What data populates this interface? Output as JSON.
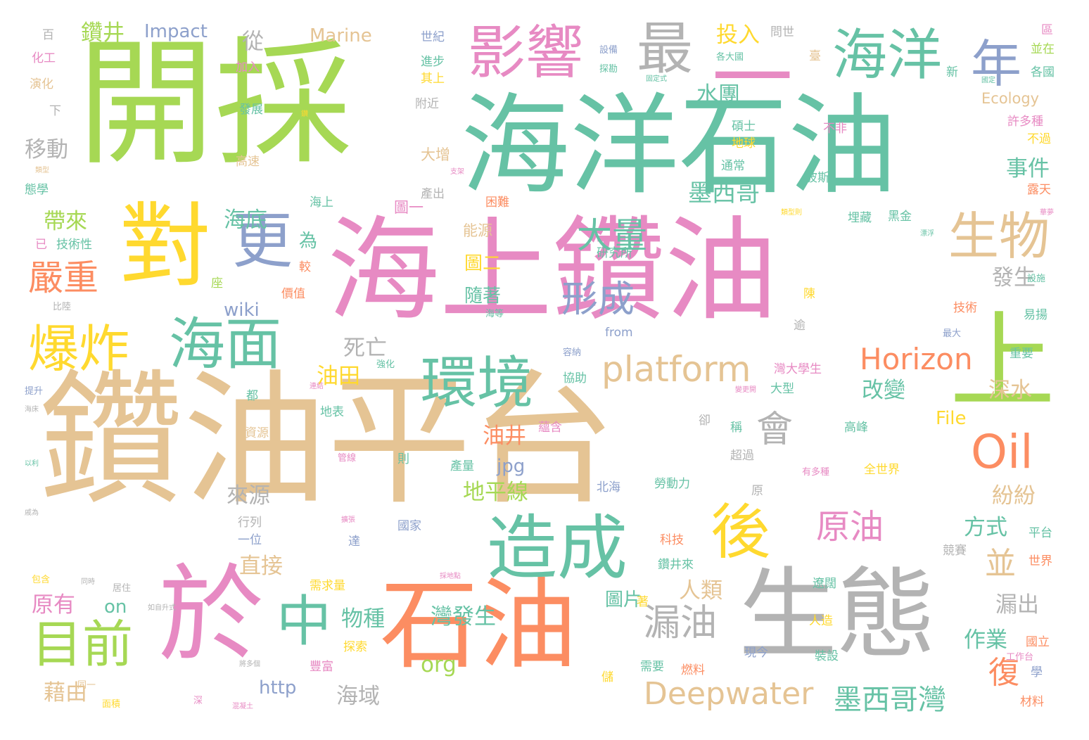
{
  "colors": {
    "tan": "#E5C494",
    "green": "#A6D854",
    "teal": "#66C2A5",
    "pink": "#E78AC3",
    "orange": "#FC8D62",
    "gray": "#B3B3B3",
    "yellow": "#FFD92F",
    "blue": "#8DA0CB"
  },
  "words": [
    {
      "text": "鑽油平台",
      "color": "tan"
    },
    {
      "text": "開採",
      "color": "green"
    },
    {
      "text": "海洋石油",
      "color": "teal"
    },
    {
      "text": "海上鑽油",
      "color": "pink"
    },
    {
      "text": "石油",
      "color": "orange"
    },
    {
      "text": "生態",
      "color": "gray"
    },
    {
      "text": "於",
      "color": "pink"
    },
    {
      "text": "對",
      "color": "yellow"
    },
    {
      "text": "上",
      "color": "green"
    },
    {
      "text": "環境",
      "color": "teal"
    },
    {
      "text": "造成",
      "color": "teal"
    },
    {
      "text": "影響",
      "color": "pink"
    },
    {
      "text": "海洋",
      "color": "teal"
    },
    {
      "text": "一",
      "color": "pink"
    },
    {
      "text": "最",
      "color": "gray"
    },
    {
      "text": "年",
      "color": "blue"
    },
    {
      "text": "生物",
      "color": "tan"
    },
    {
      "text": "更",
      "color": "blue"
    },
    {
      "text": "爆炸",
      "color": "yellow"
    },
    {
      "text": "海面",
      "color": "teal"
    },
    {
      "text": "中",
      "color": "teal"
    },
    {
      "text": "目前",
      "color": "green"
    },
    {
      "text": "後",
      "color": "yellow"
    },
    {
      "text": "Oil",
      "color": "orange"
    },
    {
      "text": "platform",
      "color": "tan"
    },
    {
      "text": "Horizon",
      "color": "orange"
    },
    {
      "text": "Deepwater",
      "color": "tan"
    },
    {
      "text": "漏油",
      "color": "gray"
    },
    {
      "text": "原油",
      "color": "pink"
    },
    {
      "text": "形成",
      "color": "blue"
    },
    {
      "text": "大量",
      "color": "teal"
    },
    {
      "text": "嚴重",
      "color": "orange"
    },
    {
      "text": "會",
      "color": "gray"
    },
    {
      "text": "墨西哥灣",
      "color": "teal"
    },
    {
      "text": "墨西哥",
      "color": "teal"
    },
    {
      "text": "復",
      "color": "orange"
    },
    {
      "text": "並",
      "color": "tan"
    },
    {
      "text": "鑽井",
      "color": "green"
    },
    {
      "text": "Impact",
      "color": "blue"
    },
    {
      "text": "Marine",
      "color": "tan"
    },
    {
      "text": "Ecology",
      "color": "tan"
    },
    {
      "text": "從",
      "color": "gray"
    },
    {
      "text": "投入",
      "color": "yellow"
    },
    {
      "text": "水團",
      "color": "teal"
    },
    {
      "text": "移動",
      "color": "gray"
    },
    {
      "text": "帶來",
      "color": "green"
    },
    {
      "text": "海底",
      "color": "teal"
    },
    {
      "text": "事件",
      "color": "teal"
    },
    {
      "text": "發生",
      "color": "gray"
    },
    {
      "text": "改變",
      "color": "teal"
    },
    {
      "text": "深水",
      "color": "tan"
    },
    {
      "text": "wiki",
      "color": "blue"
    },
    {
      "text": "死亡",
      "color": "gray"
    },
    {
      "text": "油田",
      "color": "yellow"
    },
    {
      "text": "油井",
      "color": "orange"
    },
    {
      "text": "jpg",
      "color": "blue"
    },
    {
      "text": "地平線",
      "color": "green"
    },
    {
      "text": "File",
      "color": "yellow"
    },
    {
      "text": "來源",
      "color": "gray"
    },
    {
      "text": "紛紛",
      "color": "tan"
    },
    {
      "text": "方式",
      "color": "teal"
    },
    {
      "text": "直接",
      "color": "tan"
    },
    {
      "text": "原有",
      "color": "pink"
    },
    {
      "text": "on",
      "color": "teal"
    },
    {
      "text": "物種",
      "color": "teal"
    },
    {
      "text": "人類",
      "color": "tan"
    },
    {
      "text": "圖片",
      "color": "teal"
    },
    {
      "text": "灣發生",
      "color": "teal"
    },
    {
      "text": "漏出",
      "color": "gray"
    },
    {
      "text": "作業",
      "color": "teal"
    },
    {
      "text": "org",
      "color": "green"
    },
    {
      "text": "http",
      "color": "blue"
    },
    {
      "text": "藉由",
      "color": "tan"
    },
    {
      "text": "海域",
      "color": "gray"
    },
    {
      "text": "隨著",
      "color": "teal"
    },
    {
      "text": "圖二",
      "color": "yellow"
    },
    {
      "text": "圖一",
      "color": "pink"
    },
    {
      "text": "能源",
      "color": "tan"
    },
    {
      "text": "為",
      "color": "teal"
    },
    {
      "text": "大增",
      "color": "tan"
    },
    {
      "text": "碩士",
      "color": "teal"
    },
    {
      "text": "地球",
      "color": "yellow"
    },
    {
      "text": "通常",
      "color": "teal"
    },
    {
      "text": "不非",
      "color": "pink"
    },
    {
      "text": "波斯",
      "color": "teal"
    },
    {
      "text": "黑金",
      "color": "teal"
    },
    {
      "text": "埋藏",
      "color": "teal"
    },
    {
      "text": "世紀",
      "color": "blue"
    },
    {
      "text": "進步",
      "color": "teal"
    },
    {
      "text": "其上",
      "color": "yellow"
    },
    {
      "text": "附近",
      "color": "gray"
    },
    {
      "text": "問世",
      "color": "gray"
    },
    {
      "text": "臺",
      "color": "tan"
    },
    {
      "text": "各大國",
      "color": "teal"
    },
    {
      "text": "設備",
      "color": "blue"
    },
    {
      "text": "探勘",
      "color": "teal"
    },
    {
      "text": "固定式",
      "color": "teal"
    },
    {
      "text": "新",
      "color": "teal"
    },
    {
      "text": "區",
      "color": "pink"
    },
    {
      "text": "並在",
      "color": "green"
    },
    {
      "text": "各國",
      "color": "teal"
    },
    {
      "text": "國定",
      "color": "teal"
    },
    {
      "text": "許多種",
      "color": "pink"
    },
    {
      "text": "不過",
      "color": "yellow"
    },
    {
      "text": "露天",
      "color": "orange"
    },
    {
      "text": "百",
      "color": "gray"
    },
    {
      "text": "化工",
      "color": "pink"
    },
    {
      "text": "加入",
      "color": "pink"
    },
    {
      "text": "演化",
      "color": "tan"
    },
    {
      "text": "下",
      "color": "gray"
    },
    {
      "text": "發展",
      "color": "teal"
    },
    {
      "text": "高速",
      "color": "tan"
    },
    {
      "text": "類型",
      "color": "tan"
    },
    {
      "text": "態學",
      "color": "teal"
    },
    {
      "text": "已",
      "color": "pink"
    },
    {
      "text": "技術性",
      "color": "teal"
    },
    {
      "text": "比陸",
      "color": "gray"
    },
    {
      "text": "提升",
      "color": "blue"
    },
    {
      "text": "海床",
      "color": "gray"
    },
    {
      "text": "以利",
      "color": "teal"
    },
    {
      "text": "包含",
      "color": "yellow"
    },
    {
      "text": "同時",
      "color": "gray"
    },
    {
      "text": "居住",
      "color": "gray"
    },
    {
      "text": "如自升式",
      "color": "gray"
    },
    {
      "text": "將多個",
      "color": "gray"
    },
    {
      "text": "同一",
      "color": "tan"
    },
    {
      "text": "面積",
      "color": "yellow"
    },
    {
      "text": "深",
      "color": "pink"
    },
    {
      "text": "混凝土",
      "color": "pink"
    },
    {
      "text": "海上",
      "color": "teal"
    },
    {
      "text": "產出",
      "color": "gray"
    },
    {
      "text": "困難",
      "color": "orange"
    },
    {
      "text": "研究所",
      "color": "teal"
    },
    {
      "text": "較",
      "color": "orange"
    },
    {
      "text": "價值",
      "color": "orange"
    },
    {
      "text": "座",
      "color": "green"
    },
    {
      "text": "陳",
      "color": "yellow"
    },
    {
      "text": "海等",
      "color": "teal"
    },
    {
      "text": "from",
      "color": "blue"
    },
    {
      "text": "容納",
      "color": "blue"
    },
    {
      "text": "協助",
      "color": "teal"
    },
    {
      "text": "強化",
      "color": "teal"
    },
    {
      "text": "連結",
      "color": "pink"
    },
    {
      "text": "都",
      "color": "teal"
    },
    {
      "text": "地表",
      "color": "teal"
    },
    {
      "text": "資源",
      "color": "tan"
    },
    {
      "text": "卻",
      "color": "gray"
    },
    {
      "text": "稱",
      "color": "teal"
    },
    {
      "text": "蘊含",
      "color": "pink"
    },
    {
      "text": "高峰",
      "color": "teal"
    },
    {
      "text": "管線",
      "color": "pink"
    },
    {
      "text": "則",
      "color": "teal"
    },
    {
      "text": "產量",
      "color": "teal"
    },
    {
      "text": "超過",
      "color": "gray"
    },
    {
      "text": "有多種",
      "color": "pink"
    },
    {
      "text": "全世界",
      "color": "yellow"
    },
    {
      "text": "北海",
      "color": "blue"
    },
    {
      "text": "勞動力",
      "color": "teal"
    },
    {
      "text": "原",
      "color": "gray"
    },
    {
      "text": "行列",
      "color": "gray"
    },
    {
      "text": "一位",
      "color": "blue"
    },
    {
      "text": "擴張",
      "color": "pink"
    },
    {
      "text": "達",
      "color": "blue"
    },
    {
      "text": "國家",
      "color": "blue"
    },
    {
      "text": "科技",
      "color": "orange"
    },
    {
      "text": "鑽井來",
      "color": "teal"
    },
    {
      "text": "採地點",
      "color": "pink"
    },
    {
      "text": "需求量",
      "color": "yellow"
    },
    {
      "text": "著",
      "color": "yellow"
    },
    {
      "text": "遼闊",
      "color": "teal"
    },
    {
      "text": "人造",
      "color": "yellow"
    },
    {
      "text": "現今",
      "color": "blue"
    },
    {
      "text": "裝設",
      "color": "teal"
    },
    {
      "text": "探索",
      "color": "yellow"
    },
    {
      "text": "豐富",
      "color": "pink"
    },
    {
      "text": "需要",
      "color": "teal"
    },
    {
      "text": "燃料",
      "color": "orange"
    },
    {
      "text": "儲",
      "color": "yellow"
    },
    {
      "text": "競賽",
      "color": "gray"
    },
    {
      "text": "平台",
      "color": "teal"
    },
    {
      "text": "世界",
      "color": "orange"
    },
    {
      "text": "國立",
      "color": "orange"
    },
    {
      "text": "工作台",
      "color": "pink"
    },
    {
      "text": "學",
      "color": "blue"
    },
    {
      "text": "材料",
      "color": "orange"
    },
    {
      "text": "設施",
      "color": "teal"
    },
    {
      "text": "技術",
      "color": "orange"
    },
    {
      "text": "易揚",
      "color": "teal"
    },
    {
      "text": "最大",
      "color": "blue"
    },
    {
      "text": "重要",
      "color": "teal"
    },
    {
      "text": "灣大學生",
      "color": "pink"
    },
    {
      "text": "大型",
      "color": "teal"
    },
    {
      "text": "變更開",
      "color": "pink"
    },
    {
      "text": "類型則",
      "color": "yellow"
    },
    {
      "text": "漂浮",
      "color": "teal"
    },
    {
      "text": "華夢",
      "color": "pink"
    },
    {
      "text": "逾",
      "color": "gray"
    },
    {
      "text": "戚為",
      "color": "gray"
    },
    {
      "text": "鑽",
      "color": "yellow"
    },
    {
      "text": "支架",
      "color": "pink"
    }
  ]
}
